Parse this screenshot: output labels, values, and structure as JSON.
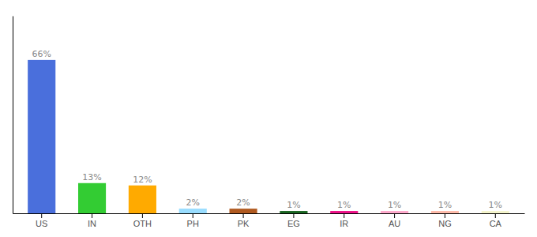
{
  "chart_data": {
    "type": "bar",
    "categories": [
      "US",
      "IN",
      "OTH",
      "PH",
      "PK",
      "EG",
      "IR",
      "AU",
      "NG",
      "CA"
    ],
    "values": [
      66,
      13,
      12,
      2,
      2,
      1,
      1,
      1,
      1,
      1
    ],
    "value_labels": [
      "66%",
      "13%",
      "12%",
      "2%",
      "2%",
      "1%",
      "1%",
      "1%",
      "1%",
      "1%"
    ],
    "colors": [
      "#4a6fdc",
      "#33cc33",
      "#ffaa00",
      "#99ddff",
      "#b05a20",
      "#1a6622",
      "#ee1188",
      "#ffaacc",
      "#ffbbaa",
      "#f5f5cc"
    ],
    "ylim": [
      0,
      85
    ],
    "data_labels": true,
    "tick_labels": "x",
    "grid": false
  }
}
